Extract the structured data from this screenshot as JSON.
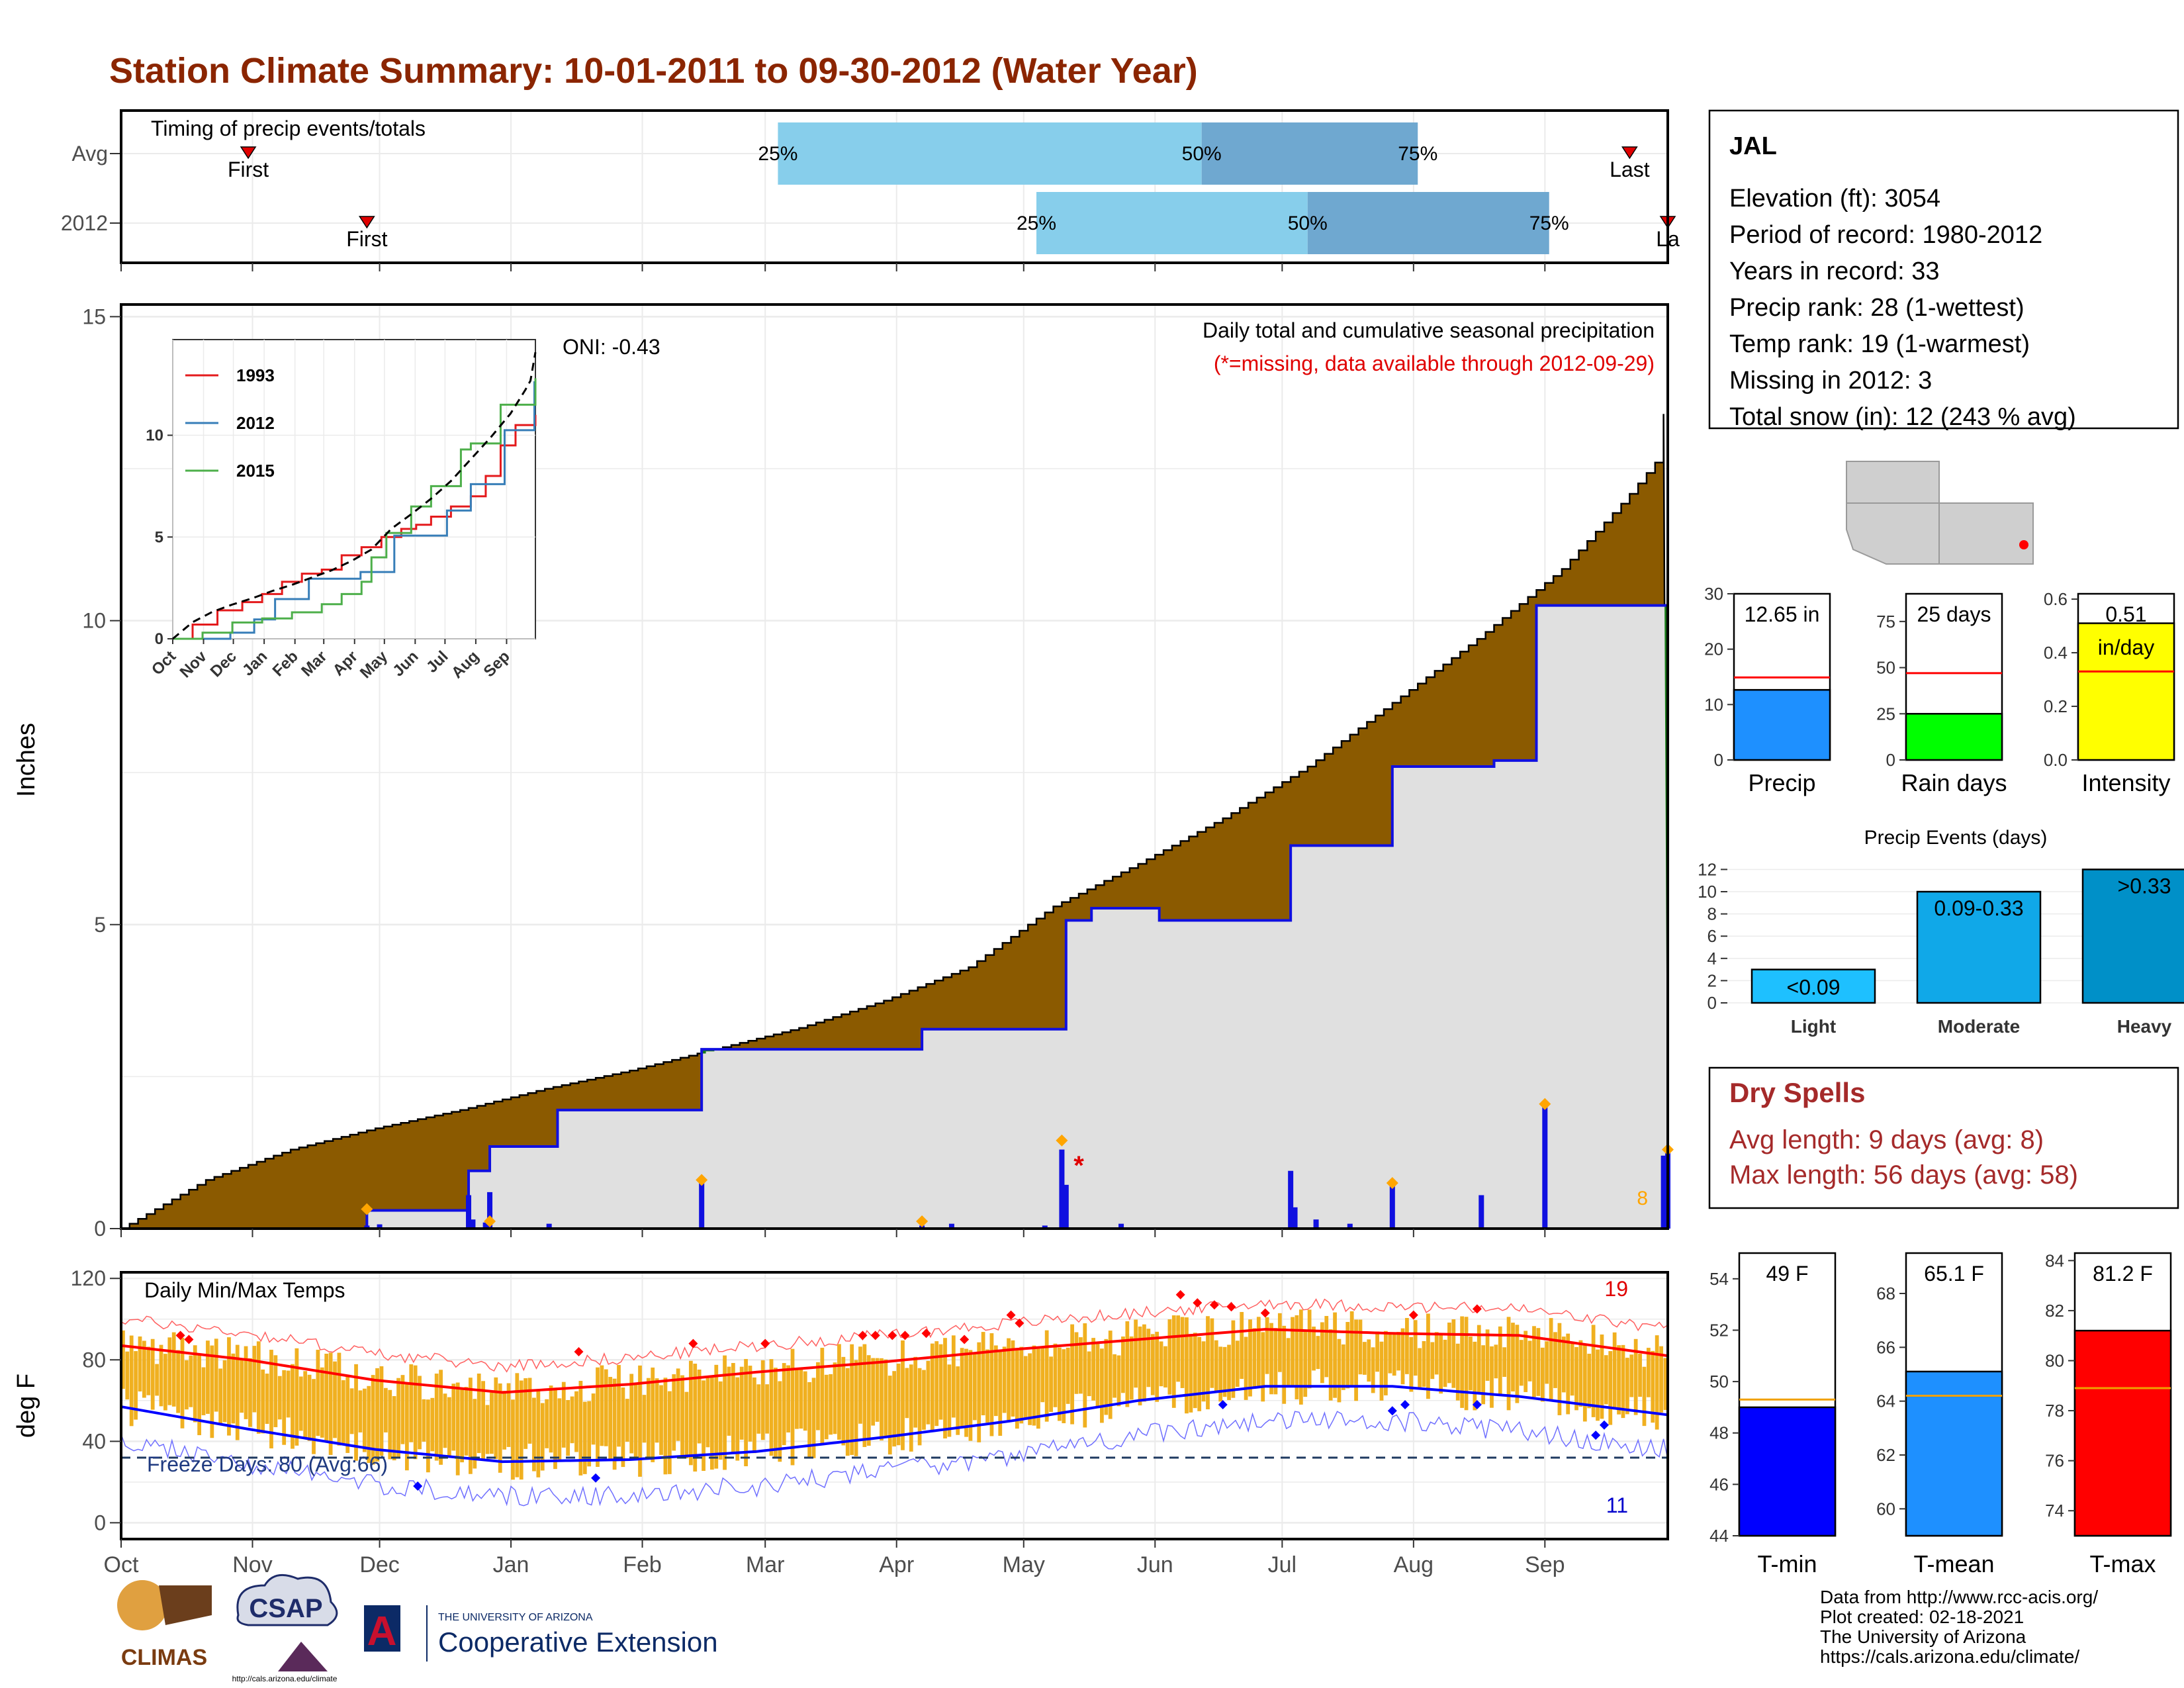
{
  "title": "Station Climate Summary: 10-01-2011 to 09-30-2012 (Water Year)",
  "colors": {
    "title": "#8B2500",
    "deficit": "#8B5A00",
    "surplus": "#1A7A1A",
    "avg_fill": "#E0E0E0",
    "line_2012": "#1010E0",
    "bar_blue": "#1E90FF",
    "rain_green": "#00FF00",
    "intensity_yellow": "#FFFF00",
    "temp_orange": "#F0B020",
    "tmax_red": "#FF0000",
    "tmin_blue": "#0000FF",
    "light_blue": "#87CEEB",
    "mid_blue": "#6FA8D0",
    "dry_red": "#A52A2A",
    "event_light": "#1EC0FF",
    "event_mod": "#10A8E8",
    "event_heavy": "#0090C8"
  },
  "timing": {
    "label": "Timing of precip events/totals",
    "rows": [
      "Avg",
      "2012"
    ],
    "avg": {
      "first": "First",
      "last": "Last",
      "p25": "25%",
      "p50": "50%",
      "p75": "75%",
      "first_day": 30,
      "last_day": 356,
      "d25": 155,
      "d50": 255,
      "d75": 306
    },
    "y2012": {
      "first": "First",
      "last": "La",
      "p25": "25%",
      "p50": "50%",
      "p75": "75%",
      "first_day": 58,
      "last_day": 365,
      "d25": 216,
      "d50": 280,
      "d75": 337
    }
  },
  "precip_panel": {
    "title": "Daily total and cumulative seasonal precipitation",
    "missing_note": "(*=missing, data available through 2012-09-29)",
    "oni": "ONI: -0.43",
    "ylabel": "Inches",
    "yticks": [
      "0",
      "5",
      "10",
      "15"
    ],
    "count_label": "8"
  },
  "inset": {
    "legend": [
      "1993",
      "2012",
      "2015"
    ],
    "legend_colors": [
      "#E41A1C",
      "#377EB8",
      "#4DAF4A"
    ],
    "yticks": [
      "0",
      "5",
      "10"
    ],
    "xticks": [
      "Oct",
      "Nov",
      "Dec",
      "Jan",
      "Feb",
      "Mar",
      "Apr",
      "May",
      "Jun",
      "Jul",
      "Aug",
      "Sep"
    ]
  },
  "temp_panel": {
    "label": "Daily Min/Max Temps",
    "ylabel": "deg F",
    "yticks": [
      "0",
      "40",
      "80",
      "120"
    ],
    "freeze": "Freeze Days: 80 (Avg:66)",
    "max_count": "19",
    "min_count": "11"
  },
  "months": [
    "Oct",
    "Nov",
    "Dec",
    "Jan",
    "Feb",
    "Mar",
    "Apr",
    "May",
    "Jun",
    "Jul",
    "Aug",
    "Sep"
  ],
  "info": {
    "station": "JAL",
    "elevation": "Elevation (ft): 3054",
    "period": "Period of record: 1980-2012",
    "years": "Years in record: 33",
    "precip_rank": "Precip rank: 28 (1-wettest)",
    "temp_rank": "Temp rank: 19 (1-warmest)",
    "missing": "Missing in 2012: 3",
    "snow": "Total snow (in): 12 (243 % avg)"
  },
  "summary_bars": [
    {
      "label": "Precip",
      "value_text": "12.65 in",
      "value": 12.65,
      "avg": 14.9,
      "yticks": [
        "0",
        "10",
        "20",
        "30"
      ],
      "ymax": 30
    },
    {
      "label": "Rain days",
      "value_text": "25 days",
      "value": 25,
      "avg": 47,
      "yticks": [
        "0",
        "25",
        "50",
        "75"
      ],
      "ymax": 90
    },
    {
      "label": "Intensity",
      "value_text": "0.51",
      "value_text2": "in/day",
      "value": 0.51,
      "avg": 0.33,
      "yticks": [
        "0.0",
        "0.2",
        "0.4",
        "0.6"
      ],
      "ymax": 0.62
    }
  ],
  "events": {
    "title": "Precip Events (days)",
    "categories": [
      "Light",
      "Moderate",
      "Heavy"
    ],
    "labels": [
      "<0.09",
      "0.09-0.33",
      ">0.33"
    ],
    "values": [
      3,
      10,
      12
    ],
    "yticks": [
      "0",
      "2",
      "4",
      "6",
      "8",
      "10",
      "12"
    ]
  },
  "dry": {
    "title": "Dry Spells",
    "avg": "Avg length: 9 days (avg: 8)",
    "max": "Max length: 56 days (avg: 58)"
  },
  "temp_bars": [
    {
      "label": "T-min",
      "value_text": "49 F",
      "value": 49,
      "avg": 49.3,
      "ymin": 44,
      "ymax": 55,
      "yticks": [
        "44",
        "46",
        "48",
        "50",
        "52",
        "54"
      ]
    },
    {
      "label": "T-mean",
      "value_text": "65.1 F",
      "value": 65.1,
      "avg": 64.2,
      "ymin": 59,
      "ymax": 69.5,
      "yticks": [
        "60",
        "62",
        "64",
        "66",
        "68"
      ]
    },
    {
      "label": "T-max",
      "value_text": "81.2 F",
      "value": 81.2,
      "avg": 78.9,
      "ymin": 73,
      "ymax": 84.3,
      "yticks": [
        "74",
        "76",
        "78",
        "80",
        "82",
        "84"
      ]
    }
  ],
  "credits": [
    "Data from http://www.rcc-acis.org/",
    "Plot created: 02-18-2021",
    "The University of Arizona",
    "https://cals.arizona.edu/climate/"
  ],
  "logos": {
    "climas": "CLIMAS",
    "csap": "CSAP",
    "csap_url": "http://cals.arizona.edu/climate",
    "ua_small": "THE UNIVERSITY OF ARIZONA",
    "ua_big": "Cooperative Extension"
  },
  "chart_data": [
    {
      "type": "area",
      "title": "Daily total and cumulative seasonal precipitation",
      "ylabel": "Inches",
      "ylim": [
        0,
        15.2
      ],
      "x_unit": "day of water year (0 = Oct 1)",
      "avg_cumulative": {
        "x": [
          0,
          20,
          40,
          60,
          80,
          100,
          120,
          140,
          160,
          180,
          200,
          220,
          240,
          260,
          280,
          300,
          320,
          340,
          355,
          362,
          365
        ],
        "y": [
          0,
          0.8,
          1.3,
          1.65,
          1.95,
          2.3,
          2.6,
          2.95,
          3.3,
          3.75,
          4.3,
          5.3,
          6.0,
          6.75,
          7.6,
          8.65,
          9.7,
          10.85,
          12.0,
          12.6,
          13.8
        ]
      },
      "cumulative_2012": {
        "steps": [
          [
            0,
            0
          ],
          [
            58,
            0.3
          ],
          [
            82,
            0.95
          ],
          [
            87,
            1.35
          ],
          [
            103,
            1.95
          ],
          [
            137,
            2.95
          ],
          [
            189,
            3.28
          ],
          [
            218,
            3.28
          ],
          [
            223,
            5.07
          ],
          [
            229,
            5.27
          ],
          [
            245,
            5.07
          ],
          [
            273,
            5.07
          ],
          [
            276,
            6.3
          ],
          [
            300,
            7.6
          ],
          [
            316,
            7.6
          ],
          [
            324,
            7.7
          ],
          [
            334,
            10.25
          ],
          [
            364,
            10.25
          ],
          [
            365,
            12.65
          ]
        ]
      },
      "daily_2012": {
        "x": [
          58,
          61,
          82,
          83,
          86,
          87,
          101,
          137,
          189,
          196,
          218,
          222,
          223,
          236,
          276,
          277,
          282,
          290,
          300,
          321,
          336,
          364,
          365
        ],
        "y": [
          0.05,
          0.07,
          0.55,
          0.15,
          0.1,
          0.6,
          0.08,
          0.8,
          0.05,
          0.08,
          0.05,
          1.3,
          0.72,
          0.08,
          0.95,
          0.35,
          0.15,
          0.08,
          0.75,
          0.55,
          2.05,
          1.2,
          1.3
        ]
      }
    },
    {
      "type": "line",
      "title": "Daily Min/Max Temps",
      "ylabel": "deg F",
      "ylim": [
        -8,
        123
      ],
      "avg_max": {
        "x": [
          0,
          30,
          60,
          90,
          120,
          150,
          180,
          210,
          240,
          270,
          300,
          330,
          365
        ],
        "y": [
          87,
          80,
          70,
          64,
          68,
          74,
          79,
          85,
          90,
          95,
          93,
          92,
          82
        ]
      },
      "avg_min": {
        "x": [
          0,
          30,
          60,
          90,
          120,
          150,
          180,
          210,
          240,
          270,
          300,
          330,
          365
        ],
        "y": [
          57,
          46,
          36,
          30,
          31,
          35,
          42,
          50,
          60,
          67,
          67,
          62,
          53
        ]
      }
    }
  ]
}
